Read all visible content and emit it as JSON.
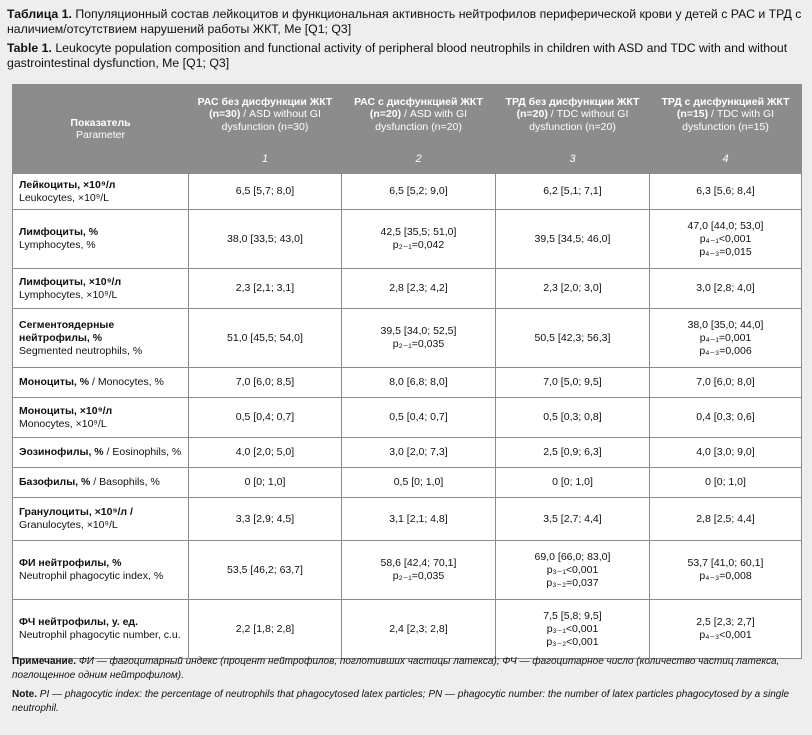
{
  "title": {
    "ru_label": "Таблица 1.",
    "ru_text": "Популяционный состав лейкоцитов и функциональная активность нейтрофилов периферической крови у детей с РАС и ТРД с наличием/отсутствием нарушений работы ЖКТ, Me [Q1; Q3]",
    "en_label": "Table 1.",
    "en_text": "Leukocyte population composition and functional activity of peripheral blood neutrophils in children with ASD and TDC with and without gastrointestinal dysfunction, Me [Q1; Q3]"
  },
  "table": {
    "param_header_ru": "Показатель",
    "param_header_en": "Parameter",
    "groups": [
      {
        "ru": "РАС без дисфункции ЖКТ (n=30)",
        "en": " / ASD without GI dysfunction (n=30)",
        "num": "1"
      },
      {
        "ru": "РАС с дисфункцией ЖКТ (n=20)",
        "en": " / ASD with GI dysfunction (n=20)",
        "num": "2"
      },
      {
        "ru": "ТРД без дисфункции ЖКТ (n=20)",
        "en": " / TDC without GI dysfunction (n=20)",
        "num": "3"
      },
      {
        "ru": "ТРД с дисфункцией ЖКТ (n=15)",
        "en": " / TDC with GI dysfunction (n=15)",
        "num": "4"
      }
    ],
    "rows": [
      {
        "ru": "Лейкоциты, ×10⁹/л",
        "en": "Leukocytes, ×10⁹/L",
        "cells": [
          [
            "6,5 [5,7; 8,0]"
          ],
          [
            "6,5 [5,2; 9,0]"
          ],
          [
            "6,2 [5,1; 7,1]"
          ],
          [
            "6,3 [5,6; 8,4]"
          ]
        ]
      },
      {
        "ru": "Лимфоциты, %",
        "en": "Lymphocytes, %",
        "cells": [
          [
            "38,0 [33,5; 43,0]"
          ],
          [
            "42,5 [35,5; 51,0]",
            "p₂₋₁=0,042"
          ],
          [
            "39,5 [34,5; 46,0]"
          ],
          [
            "47,0 [44,0; 53,0]",
            "p₄₋₁<0,001",
            "p₄₋₃=0,015"
          ]
        ]
      },
      {
        "ru": "Лимфоциты, ×10⁹/л",
        "en": "Lymphocytes, ×10⁹/L",
        "cells": [
          [
            "2,3 [2,1; 3,1]"
          ],
          [
            "2,8 [2,3; 4,2]"
          ],
          [
            "2,3 [2,0; 3,0]"
          ],
          [
            "3,0 [2,8; 4,0]"
          ]
        ]
      },
      {
        "ru": "Сегментоядерные нейтрофилы, %",
        "en": "Segmented neutrophils, %",
        "cells": [
          [
            "51,0 [45,5; 54,0]"
          ],
          [
            "39,5 [34,0; 52,5]",
            "p₂₋₁=0,035"
          ],
          [
            "50,5 [42,3; 56,3]"
          ],
          [
            "38,0 [35,0; 44,0]",
            "p₄₋₁=0,001",
            "p₄₋₃=0,006"
          ]
        ]
      },
      {
        "ru": "Моноциты, %",
        "en": " / Monocytes, %",
        "cells": [
          [
            "7,0 [6,0; 8,5]"
          ],
          [
            "8,0 [6,8; 8,0]"
          ],
          [
            "7,0 [5,0; 9,5]"
          ],
          [
            "7,0 [6,0; 8,0]"
          ]
        ]
      },
      {
        "ru": "Моноциты, ×10⁹/л",
        "en": "Monocytes, ×10⁹/L",
        "cells": [
          [
            "0,5 [0,4; 0,7]"
          ],
          [
            "0,5 [0,4; 0,7]"
          ],
          [
            "0,5 [0,3; 0,8]"
          ],
          [
            "0,4 [0,3; 0,6]"
          ]
        ]
      },
      {
        "ru": "Эозинофилы, %",
        "en": " / Eosinophils, %",
        "cells": [
          [
            "4,0 [2,0; 5,0]"
          ],
          [
            "3,0 [2,0; 7,3]"
          ],
          [
            "2,5 [0,9; 6,3]"
          ],
          [
            "4,0 [3,0; 9,0]"
          ]
        ]
      },
      {
        "ru": "Базофилы, %",
        "en": " / Basophils, %",
        "cells": [
          [
            "0 [0; 1,0]"
          ],
          [
            "0,5 [0; 1,0]"
          ],
          [
            "0 [0; 1,0]"
          ],
          [
            "0 [0; 1,0]"
          ]
        ]
      },
      {
        "ru": "Гранулоциты, ×10⁹/л /",
        "en": "Granulocytes, ×10⁹/L",
        "cells": [
          [
            "3,3 [2,9; 4,5]"
          ],
          [
            "3,1 [2,1; 4,8]"
          ],
          [
            "3,5 [2,7; 4,4]"
          ],
          [
            "2,8 [2,5; 4,4]"
          ]
        ]
      },
      {
        "ru": "ФИ нейтрофилы, %",
        "en": "Neutrophil phagocytic index, %",
        "cells": [
          [
            "53,5 [46,2; 63,7]"
          ],
          [
            "58,6 [42,4; 70,1]",
            "p₂₋₁=0,035"
          ],
          [
            "69,0 [66,0; 83,0]",
            "p₃₋₁<0,001",
            "p₃₋₂=0,037"
          ],
          [
            "53,7 [41,0; 60,1]",
            "p₄₋₃=0,008"
          ]
        ]
      },
      {
        "ru": "ФЧ нейтрофилы, у. ед.",
        "en": "Neutrophil phagocytic number, c.u.",
        "cells": [
          [
            "2,2 [1,8; 2,8]"
          ],
          [
            "2,4 [2,3; 2,8]"
          ],
          [
            "7,5 [5,8; 9,5]",
            "p₃₋₁<0,001",
            "p₃₋₂<0,001"
          ],
          [
            "2,5 [2,3; 2,7]",
            "p₄₋₃<0,001"
          ]
        ]
      }
    ]
  },
  "notes": {
    "ru_label": "Примечание.",
    "ru_text": "ФИ — фагоцитарный индекс (процент нейтрофилов, поглотивших частицы латекса); ФЧ — фагоцитарное число (количество частиц латекса, поглощенное одним нейтрофилом).",
    "en_label": "Note.",
    "en_text": "PI — phagocytic index: the percentage of neutrophils that phagocytosed latex particles; PN — phagocytic number: the number of latex particles phagocytosed by a single neutrophil."
  }
}
